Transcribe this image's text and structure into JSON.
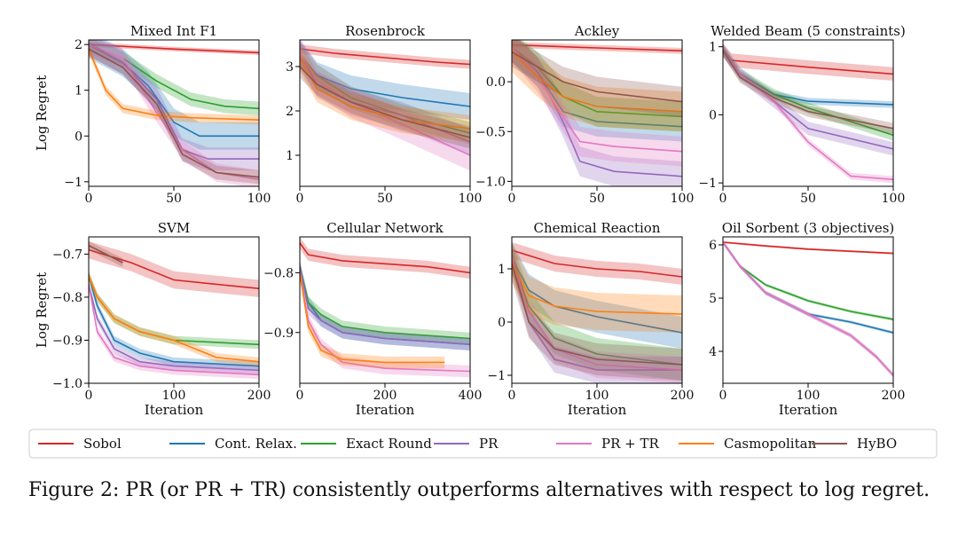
{
  "legend": [
    {
      "name": "Sobol",
      "color": "#d62728"
    },
    {
      "name": "Cont. Relax.",
      "color": "#1f77b4"
    },
    {
      "name": "Exact Round",
      "color": "#2ca02c"
    },
    {
      "name": "PR",
      "color": "#9467bd"
    },
    {
      "name": "PR + TR",
      "color": "#e377c2"
    },
    {
      "name": "Casmopolitan",
      "color": "#ff7f0e"
    },
    {
      "name": "HyBO",
      "color": "#8c564b"
    }
  ],
  "caption": "Figure 2: PR (or PR + TR) consistently outperforms alternatives with respect to log regret.",
  "chart_data": [
    {
      "type": "line",
      "title": "Mixed Int F1",
      "xlabel": "",
      "ylabel": "Log Regret",
      "xlim": [
        0,
        100
      ],
      "ylim": [
        -1.1,
        2.1
      ],
      "xticks": [
        0,
        50,
        100
      ],
      "yticks": [
        -1,
        0,
        1,
        2
      ],
      "series": [
        {
          "name": "Sobol",
          "x": [
            0,
            50,
            100
          ],
          "y": [
            2.0,
            1.9,
            1.82
          ],
          "band": 0.05
        },
        {
          "name": "Cont. Relax.",
          "x": [
            0,
            20,
            35,
            50,
            65,
            100
          ],
          "y": [
            2.0,
            1.6,
            1.1,
            0.3,
            0.0,
            0.0
          ],
          "band": 0.3
        },
        {
          "name": "Exact Round",
          "x": [
            0,
            20,
            40,
            60,
            80,
            100
          ],
          "y": [
            2.0,
            1.7,
            1.2,
            0.8,
            0.65,
            0.6
          ],
          "band": 0.15
        },
        {
          "name": "PR",
          "x": [
            0,
            20,
            40,
            55,
            70,
            100
          ],
          "y": [
            2.0,
            1.6,
            0.8,
            -0.3,
            -0.5,
            -0.5
          ],
          "band": 0.25
        },
        {
          "name": "PR + TR",
          "x": [
            0,
            20,
            40,
            55,
            75,
            100
          ],
          "y": [
            2.0,
            1.7,
            0.5,
            -0.3,
            -0.8,
            -0.95
          ],
          "band": 0.2
        },
        {
          "name": "Casmopolitan",
          "x": [
            0,
            10,
            20,
            40,
            60,
            100
          ],
          "y": [
            1.9,
            1.0,
            0.6,
            0.45,
            0.4,
            0.35
          ],
          "band": 0.1
        },
        {
          "name": "HyBO",
          "x": [
            0,
            20,
            40,
            55,
            75,
            100
          ],
          "y": [
            1.9,
            1.5,
            0.7,
            -0.4,
            -0.8,
            -0.9
          ],
          "band": 0.15
        }
      ]
    },
    {
      "type": "line",
      "title": "Rosenbrock",
      "xlabel": "",
      "ylabel": "",
      "xlim": [
        0,
        100
      ],
      "ylim": [
        0.3,
        3.6
      ],
      "xticks": [
        0,
        50,
        100
      ],
      "yticks": [
        1,
        2,
        3
      ],
      "series": [
        {
          "name": "Sobol",
          "x": [
            0,
            20,
            50,
            80,
            100
          ],
          "y": [
            3.4,
            3.3,
            3.2,
            3.1,
            3.05
          ],
          "band": 0.1
        },
        {
          "name": "Cont. Relax.",
          "x": [
            0,
            10,
            30,
            60,
            100
          ],
          "y": [
            3.3,
            2.8,
            2.5,
            2.3,
            2.1
          ],
          "band": 0.3
        },
        {
          "name": "Exact Round",
          "x": [
            0,
            10,
            30,
            60,
            100
          ],
          "y": [
            3.3,
            2.8,
            2.3,
            1.9,
            1.5
          ],
          "band": 0.25
        },
        {
          "name": "PR",
          "x": [
            0,
            10,
            30,
            60,
            100
          ],
          "y": [
            3.3,
            2.6,
            2.2,
            1.9,
            1.3
          ],
          "band": 0.3
        },
        {
          "name": "PR + TR",
          "x": [
            0,
            10,
            30,
            60,
            100
          ],
          "y": [
            3.3,
            2.7,
            2.2,
            1.7,
            1.0
          ],
          "band": 0.35
        },
        {
          "name": "Casmopolitan",
          "x": [
            0,
            10,
            30,
            60,
            100
          ],
          "y": [
            3.2,
            2.5,
            2.1,
            1.8,
            1.6
          ],
          "band": 0.3
        },
        {
          "name": "HyBO",
          "x": [
            0,
            10,
            30,
            60,
            100
          ],
          "y": [
            3.0,
            2.6,
            2.2,
            1.8,
            1.4
          ],
          "band": 0.25
        }
      ]
    },
    {
      "type": "line",
      "title": "Ackley",
      "xlabel": "",
      "ylabel": "",
      "xlim": [
        0,
        100
      ],
      "ylim": [
        -1.05,
        0.42
      ],
      "xticks": [
        0,
        50,
        100
      ],
      "yticks": [
        -1.0,
        -0.5,
        0.0
      ],
      "series": [
        {
          "name": "Sobol",
          "x": [
            0,
            50,
            100
          ],
          "y": [
            0.37,
            0.34,
            0.31
          ],
          "band": 0.03
        },
        {
          "name": "Cont. Relax.",
          "x": [
            0,
            15,
            30,
            50,
            100
          ],
          "y": [
            0.35,
            0.1,
            -0.3,
            -0.4,
            -0.45
          ],
          "band": 0.15
        },
        {
          "name": "Exact Round",
          "x": [
            0,
            15,
            30,
            50,
            100
          ],
          "y": [
            0.35,
            0.15,
            -0.15,
            -0.3,
            -0.35
          ],
          "band": 0.15
        },
        {
          "name": "PR",
          "x": [
            0,
            15,
            30,
            40,
            60,
            100
          ],
          "y": [
            0.35,
            0.1,
            -0.4,
            -0.8,
            -0.9,
            -0.95
          ],
          "band": 0.15
        },
        {
          "name": "PR + TR",
          "x": [
            0,
            15,
            30,
            40,
            60,
            100
          ],
          "y": [
            0.35,
            0.05,
            -0.35,
            -0.6,
            -0.65,
            -0.7
          ],
          "band": 0.15
        },
        {
          "name": "Casmopolitan",
          "x": [
            0,
            15,
            30,
            50,
            100
          ],
          "y": [
            0.3,
            0.05,
            -0.15,
            -0.25,
            -0.3
          ],
          "band": 0.2
        },
        {
          "name": "HyBO",
          "x": [
            0,
            15,
            30,
            50,
            100
          ],
          "y": [
            0.3,
            0.15,
            0.0,
            -0.1,
            -0.2
          ],
          "band": 0.15
        }
      ]
    },
    {
      "type": "line",
      "title": "Welded Beam (5 constraints)",
      "xlabel": "",
      "ylabel": "",
      "xlim": [
        0,
        100
      ],
      "ylim": [
        -1.05,
        1.1
      ],
      "xticks": [
        0,
        50,
        100
      ],
      "yticks": [
        -1,
        0,
        1
      ],
      "series": [
        {
          "name": "Sobol",
          "x": [
            0,
            5,
            50,
            100
          ],
          "y": [
            0.95,
            0.8,
            0.7,
            0.6
          ],
          "band": 0.1
        },
        {
          "name": "Cont. Relax.",
          "x": [
            0,
            10,
            30,
            50,
            100
          ],
          "y": [
            0.95,
            0.6,
            0.3,
            0.2,
            0.15
          ],
          "band": 0.05
        },
        {
          "name": "Exact Round",
          "x": [
            0,
            10,
            30,
            50,
            100
          ],
          "y": [
            0.95,
            0.6,
            0.3,
            0.1,
            -0.3
          ],
          "band": 0.08
        },
        {
          "name": "PR",
          "x": [
            0,
            10,
            30,
            50,
            100
          ],
          "y": [
            0.95,
            0.6,
            0.2,
            -0.2,
            -0.5
          ],
          "band": 0.1
        },
        {
          "name": "PR + TR",
          "x": [
            0,
            10,
            30,
            50,
            75,
            100
          ],
          "y": [
            0.95,
            0.6,
            0.2,
            -0.4,
            -0.9,
            -0.95
          ],
          "band": 0.05
        },
        {
          "name": "HyBO",
          "x": [
            0,
            10,
            30,
            50,
            100
          ],
          "y": [
            0.95,
            0.55,
            0.25,
            0.05,
            -0.2
          ],
          "band": 0.08
        }
      ]
    },
    {
      "type": "line",
      "title": "SVM",
      "xlabel": "Iteration",
      "ylabel": "Log Regret",
      "xlim": [
        0,
        200
      ],
      "ylim": [
        -1.0,
        -0.66
      ],
      "xticks": [
        0,
        100,
        200
      ],
      "yticks": [
        -1.0,
        -0.9,
        -0.8,
        -0.7
      ],
      "series": [
        {
          "name": "Sobol",
          "x": [
            0,
            50,
            100,
            150,
            200
          ],
          "y": [
            -0.69,
            -0.72,
            -0.76,
            -0.77,
            -0.78
          ],
          "band": 0.02
        },
        {
          "name": "Cont. Relax.",
          "x": [
            0,
            10,
            30,
            60,
            100,
            200
          ],
          "y": [
            -0.75,
            -0.82,
            -0.9,
            -0.93,
            -0.95,
            -0.96
          ],
          "band": 0.01
        },
        {
          "name": "Exact Round",
          "x": [
            0,
            10,
            30,
            60,
            100,
            200
          ],
          "y": [
            -0.75,
            -0.8,
            -0.85,
            -0.88,
            -0.9,
            -0.91
          ],
          "band": 0.01
        },
        {
          "name": "PR",
          "x": [
            0,
            10,
            30,
            60,
            100,
            200
          ],
          "y": [
            -0.77,
            -0.85,
            -0.92,
            -0.95,
            -0.96,
            -0.97
          ],
          "band": 0.01
        },
        {
          "name": "PR + TR",
          "x": [
            0,
            10,
            30,
            60,
            100,
            200
          ],
          "y": [
            -0.77,
            -0.88,
            -0.94,
            -0.96,
            -0.97,
            -0.98
          ],
          "band": 0.01
        },
        {
          "name": "Casmopolitan",
          "x": [
            0,
            10,
            30,
            60,
            100,
            150,
            200
          ],
          "y": [
            -0.75,
            -0.8,
            -0.85,
            -0.88,
            -0.9,
            -0.94,
            -0.95
          ],
          "band": 0.01
        },
        {
          "name": "HyBO",
          "x": [
            0,
            20,
            40
          ],
          "y": [
            -0.68,
            -0.7,
            -0.72
          ],
          "band": 0.01
        }
      ]
    },
    {
      "type": "line",
      "title": "Cellular Network",
      "xlabel": "Iteration",
      "ylabel": "",
      "xlim": [
        0,
        400
      ],
      "ylim": [
        -0.985,
        -0.74
      ],
      "xticks": [
        0,
        200,
        400
      ],
      "yticks": [
        -0.9,
        -0.8
      ],
      "series": [
        {
          "name": "Sobol",
          "x": [
            0,
            20,
            100,
            200,
            300,
            400
          ],
          "y": [
            -0.75,
            -0.77,
            -0.78,
            -0.785,
            -0.79,
            -0.8
          ],
          "band": 0.01
        },
        {
          "name": "Cont. Relax.",
          "x": [
            0,
            20,
            50,
            100,
            200,
            400
          ],
          "y": [
            -0.79,
            -0.85,
            -0.88,
            -0.9,
            -0.91,
            -0.92
          ],
          "band": 0.01
        },
        {
          "name": "Exact Round",
          "x": [
            0,
            20,
            50,
            100,
            200,
            400
          ],
          "y": [
            -0.79,
            -0.85,
            -0.87,
            -0.89,
            -0.9,
            -0.91
          ],
          "band": 0.01
        },
        {
          "name": "PR",
          "x": [
            0,
            20,
            50,
            100,
            200,
            400
          ],
          "y": [
            -0.79,
            -0.86,
            -0.88,
            -0.9,
            -0.91,
            -0.92
          ],
          "band": 0.01
        },
        {
          "name": "PR + TR",
          "x": [
            0,
            20,
            50,
            100,
            200,
            400
          ],
          "y": [
            -0.8,
            -0.88,
            -0.92,
            -0.95,
            -0.96,
            -0.965
          ],
          "band": 0.01
        },
        {
          "name": "Casmopolitan",
          "x": [
            0,
            20,
            50,
            100,
            200,
            340
          ],
          "y": [
            -0.8,
            -0.89,
            -0.93,
            -0.945,
            -0.95,
            -0.95
          ],
          "band": 0.01
        }
      ]
    },
    {
      "type": "line",
      "title": "Chemical Reaction",
      "xlabel": "Iteration",
      "ylabel": "",
      "xlim": [
        0,
        200
      ],
      "ylim": [
        -1.15,
        1.6
      ],
      "xticks": [
        0,
        100,
        200
      ],
      "yticks": [
        -1,
        0,
        1
      ],
      "series": [
        {
          "name": "Sobol",
          "x": [
            0,
            50,
            100,
            150,
            200
          ],
          "y": [
            1.35,
            1.1,
            1.0,
            0.95,
            0.85
          ],
          "band": 0.15
        },
        {
          "name": "Cont. Relax.",
          "x": [
            0,
            20,
            50,
            100,
            200
          ],
          "y": [
            1.2,
            0.6,
            0.3,
            0.1,
            -0.2
          ],
          "band": 0.3
        },
        {
          "name": "Exact Round",
          "x": [
            0,
            20,
            50,
            100,
            200
          ],
          "y": [
            1.2,
            0.3,
            -0.3,
            -0.6,
            -0.8
          ],
          "band": 0.3
        },
        {
          "name": "PR",
          "x": [
            0,
            20,
            50,
            100,
            200
          ],
          "y": [
            1.2,
            0.0,
            -0.7,
            -0.9,
            -0.9
          ],
          "band": 0.25
        },
        {
          "name": "PR + TR",
          "x": [
            0,
            20,
            50,
            100,
            200
          ],
          "y": [
            1.2,
            0.2,
            -0.5,
            -0.8,
            -0.9
          ],
          "band": 0.25
        },
        {
          "name": "Casmopolitan",
          "x": [
            0,
            20,
            50,
            100,
            200
          ],
          "y": [
            1.1,
            0.5,
            0.3,
            0.2,
            0.15
          ],
          "band": 0.35
        },
        {
          "name": "HyBO",
          "x": [
            0,
            20,
            50,
            100,
            200
          ],
          "y": [
            1.1,
            0.0,
            -0.5,
            -0.7,
            -0.8
          ],
          "band": 0.3
        }
      ]
    },
    {
      "type": "line",
      "title": "Oil Sorbent (3 objectives)",
      "xlabel": "Iteration",
      "ylabel": "",
      "xlim": [
        0,
        200
      ],
      "ylim": [
        3.4,
        6.15
      ],
      "xticks": [
        0,
        100,
        200
      ],
      "yticks": [
        4,
        5,
        6
      ],
      "series": [
        {
          "name": "Sobol",
          "x": [
            0,
            50,
            100,
            150,
            200
          ],
          "y": [
            6.05,
            5.98,
            5.92,
            5.88,
            5.84
          ],
          "band": 0.02
        },
        {
          "name": "Cont. Relax.",
          "x": [
            0,
            20,
            50,
            100,
            150,
            200
          ],
          "y": [
            6.05,
            5.6,
            5.1,
            4.7,
            4.55,
            4.35
          ],
          "band": 0.03
        },
        {
          "name": "Exact Round",
          "x": [
            0,
            20,
            50,
            100,
            150,
            200
          ],
          "y": [
            6.05,
            5.6,
            5.25,
            4.95,
            4.75,
            4.6
          ],
          "band": 0.03
        },
        {
          "name": "PR",
          "x": [
            0,
            20,
            50,
            100,
            150,
            180,
            200
          ],
          "y": [
            6.05,
            5.6,
            5.1,
            4.7,
            4.3,
            3.9,
            3.55
          ],
          "band": 0.04
        },
        {
          "name": "PR + TR",
          "x": [
            0,
            20,
            50,
            100,
            150,
            180,
            200
          ],
          "y": [
            6.05,
            5.6,
            5.1,
            4.7,
            4.3,
            3.9,
            3.55
          ],
          "band": 0.04
        }
      ]
    }
  ]
}
